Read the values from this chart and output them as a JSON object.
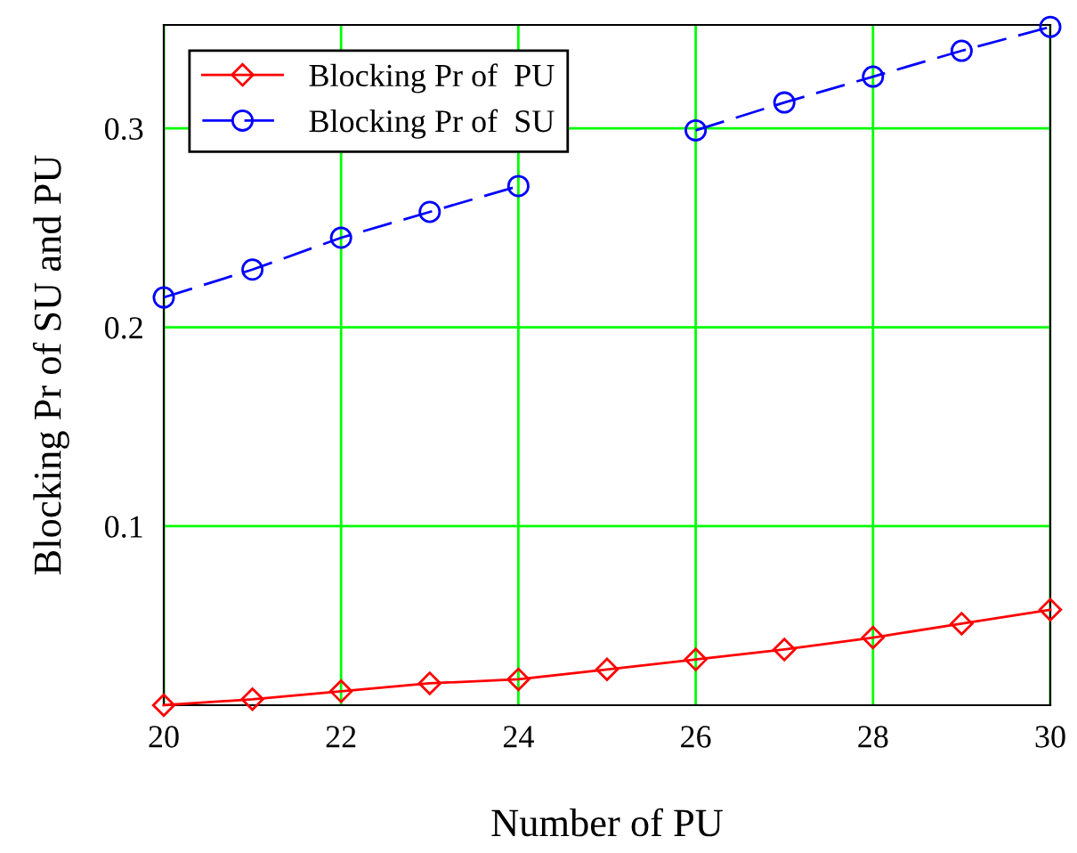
{
  "chart_data": {
    "type": "line",
    "xlabel": "Number of PU",
    "ylabel": "Blocking Pr of SU and PU",
    "x": [
      20,
      21,
      22,
      23,
      24,
      25,
      26,
      27,
      28,
      29,
      30
    ],
    "series": [
      {
        "name": "Blocking Pr of  PU",
        "color": "#ff0000",
        "marker": "diamond",
        "line_style": "solid",
        "values": [
          0.01,
          0.013,
          0.017,
          0.021,
          0.023,
          0.028,
          0.033,
          0.038,
          0.044,
          0.051,
          0.058
        ]
      },
      {
        "name": "Blocking Pr of  SU",
        "color": "#0000ff",
        "marker": "circle",
        "line_style": "dashed",
        "values": [
          0.215,
          0.229,
          0.245,
          0.258,
          0.271,
          null,
          0.299,
          0.313,
          0.326,
          0.339,
          0.351
        ]
      }
    ],
    "xlim": [
      20,
      30
    ],
    "ylim": [
      0.01,
      0.352
    ],
    "xticks": [
      20,
      22,
      24,
      26,
      28,
      30
    ],
    "yticks": [
      0.1,
      0.2,
      0.3
    ],
    "grid": true,
    "legend": "top left"
  }
}
